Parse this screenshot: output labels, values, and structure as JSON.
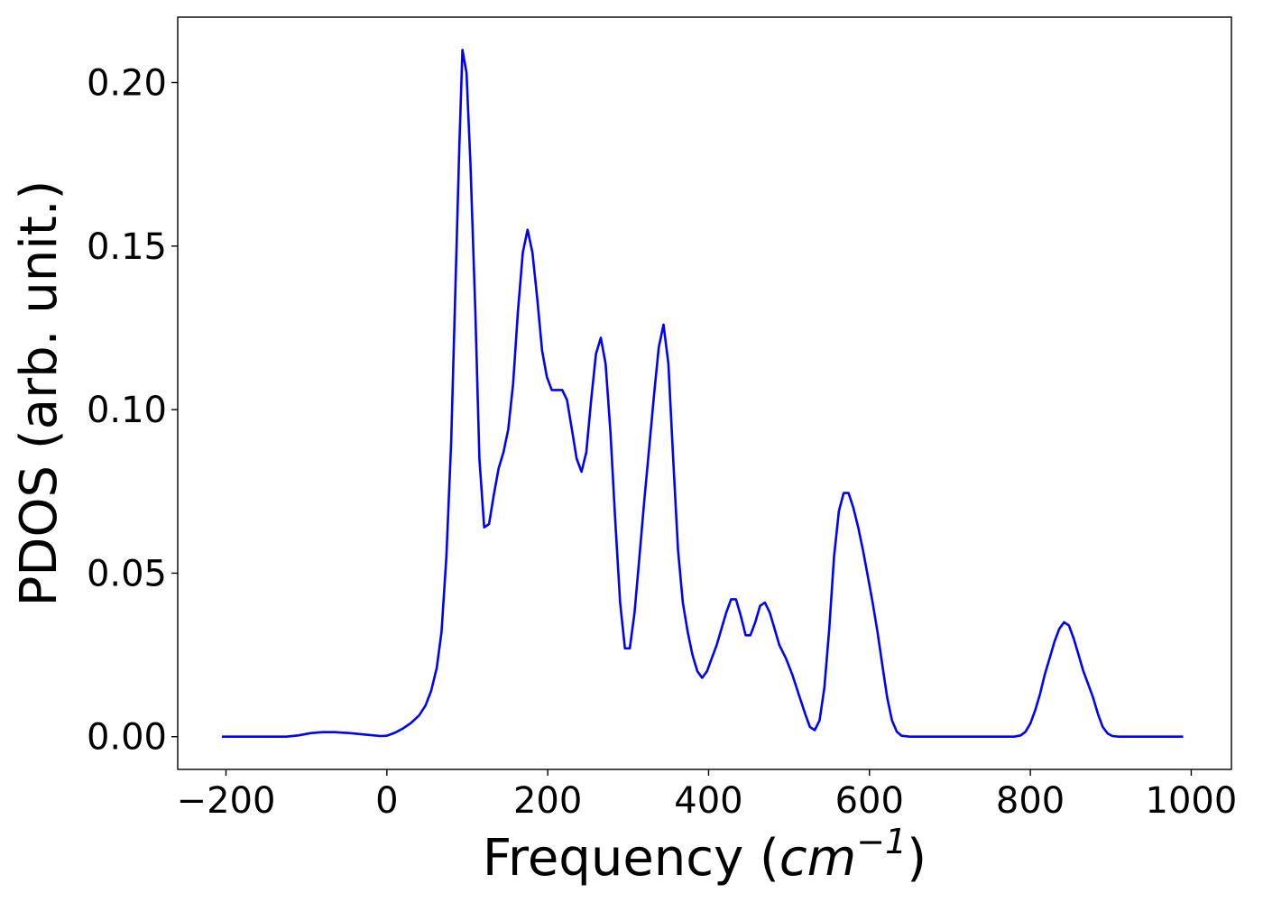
{
  "chart_data": {
    "type": "line",
    "xlabel_prefix": "Frequency (",
    "xlabel_unit": "cm",
    "xlabel_exp": "−1",
    "xlabel_suffix": ")",
    "ylabel": "PDOS (arb. unit.)",
    "xlim": [
      -260,
      1050
    ],
    "ylim": [
      -0.01,
      0.22
    ],
    "x_ticks": [
      {
        "value": -200,
        "label": "−200"
      },
      {
        "value": 0,
        "label": "0"
      },
      {
        "value": 200,
        "label": "200"
      },
      {
        "value": 400,
        "label": "400"
      },
      {
        "value": 600,
        "label": "600"
      },
      {
        "value": 800,
        "label": "800"
      },
      {
        "value": 1000,
        "label": "1000"
      }
    ],
    "y_ticks": [
      {
        "value": 0.0,
        "label": "0.00"
      },
      {
        "value": 0.05,
        "label": "0.05"
      },
      {
        "value": 0.1,
        "label": "0.10"
      },
      {
        "value": 0.15,
        "label": "0.15"
      },
      {
        "value": 0.2,
        "label": "0.20"
      }
    ],
    "grid": false,
    "series": [
      {
        "color": "#0000ff",
        "points": [
          [
            -205,
            0.0
          ],
          [
            -180,
            0.0
          ],
          [
            -150,
            0.0
          ],
          [
            -125,
            0.0
          ],
          [
            -110,
            0.0004
          ],
          [
            -95,
            0.0011
          ],
          [
            -80,
            0.0014
          ],
          [
            -65,
            0.0014
          ],
          [
            -45,
            0.0011
          ],
          [
            -25,
            0.0006
          ],
          [
            -8,
            0.0002
          ],
          [
            0,
            0.0003
          ],
          [
            10,
            0.0012
          ],
          [
            20,
            0.0025
          ],
          [
            30,
            0.0042
          ],
          [
            40,
            0.0065
          ],
          [
            48,
            0.0095
          ],
          [
            55,
            0.014
          ],
          [
            62,
            0.021
          ],
          [
            68,
            0.032
          ],
          [
            74,
            0.055
          ],
          [
            80,
            0.09
          ],
          [
            85,
            0.135
          ],
          [
            90,
            0.18
          ],
          [
            94,
            0.21
          ],
          [
            99,
            0.203
          ],
          [
            104,
            0.175
          ],
          [
            110,
            0.13
          ],
          [
            115,
            0.085
          ],
          [
            121,
            0.064
          ],
          [
            127,
            0.065
          ],
          [
            133,
            0.074
          ],
          [
            139,
            0.082
          ],
          [
            145,
            0.087
          ],
          [
            151,
            0.094
          ],
          [
            157,
            0.108
          ],
          [
            163,
            0.13
          ],
          [
            169,
            0.148
          ],
          [
            175,
            0.155
          ],
          [
            181,
            0.148
          ],
          [
            187,
            0.134
          ],
          [
            193,
            0.118
          ],
          [
            199,
            0.11
          ],
          [
            205,
            0.106
          ],
          [
            212,
            0.106
          ],
          [
            218,
            0.106
          ],
          [
            224,
            0.103
          ],
          [
            230,
            0.094
          ],
          [
            236,
            0.085
          ],
          [
            242,
            0.081
          ],
          [
            248,
            0.087
          ],
          [
            254,
            0.103
          ],
          [
            260,
            0.117
          ],
          [
            266,
            0.122
          ],
          [
            272,
            0.114
          ],
          [
            278,
            0.093
          ],
          [
            284,
            0.066
          ],
          [
            290,
            0.041
          ],
          [
            296,
            0.027
          ],
          [
            302,
            0.027
          ],
          [
            308,
            0.038
          ],
          [
            314,
            0.055
          ],
          [
            320,
            0.072
          ],
          [
            326,
            0.088
          ],
          [
            332,
            0.104
          ],
          [
            338,
            0.119
          ],
          [
            344,
            0.126
          ],
          [
            350,
            0.114
          ],
          [
            356,
            0.085
          ],
          [
            362,
            0.057
          ],
          [
            368,
            0.041
          ],
          [
            374,
            0.032
          ],
          [
            380,
            0.025
          ],
          [
            386,
            0.02
          ],
          [
            392,
            0.018
          ],
          [
            398,
            0.02
          ],
          [
            404,
            0.024
          ],
          [
            410,
            0.028
          ],
          [
            416,
            0.033
          ],
          [
            422,
            0.038
          ],
          [
            428,
            0.042
          ],
          [
            434,
            0.042
          ],
          [
            440,
            0.037
          ],
          [
            446,
            0.031
          ],
          [
            452,
            0.031
          ],
          [
            458,
            0.035
          ],
          [
            464,
            0.04
          ],
          [
            470,
            0.041
          ],
          [
            476,
            0.038
          ],
          [
            482,
            0.033
          ],
          [
            488,
            0.028
          ],
          [
            496,
            0.024
          ],
          [
            504,
            0.019
          ],
          [
            512,
            0.013
          ],
          [
            520,
            0.007
          ],
          [
            526,
            0.003
          ],
          [
            532,
            0.002
          ],
          [
            538,
            0.005
          ],
          [
            544,
            0.015
          ],
          [
            550,
            0.033
          ],
          [
            556,
            0.055
          ],
          [
            562,
            0.069
          ],
          [
            568,
            0.0745
          ],
          [
            574,
            0.0745
          ],
          [
            580,
            0.07
          ],
          [
            586,
            0.064
          ],
          [
            592,
            0.057
          ],
          [
            598,
            0.049
          ],
          [
            604,
            0.041
          ],
          [
            610,
            0.032
          ],
          [
            616,
            0.022
          ],
          [
            622,
            0.012
          ],
          [
            628,
            0.005
          ],
          [
            634,
            0.0015
          ],
          [
            640,
            0.0003
          ],
          [
            650,
            0.0
          ],
          [
            700,
            0.0
          ],
          [
            750,
            0.0
          ],
          [
            780,
            0.0
          ],
          [
            788,
            0.0004
          ],
          [
            794,
            0.0015
          ],
          [
            800,
            0.004
          ],
          [
            806,
            0.008
          ],
          [
            812,
            0.013
          ],
          [
            818,
            0.019
          ],
          [
            824,
            0.024
          ],
          [
            830,
            0.029
          ],
          [
            836,
            0.033
          ],
          [
            842,
            0.035
          ],
          [
            848,
            0.034
          ],
          [
            854,
            0.03
          ],
          [
            860,
            0.025
          ],
          [
            866,
            0.02
          ],
          [
            872,
            0.016
          ],
          [
            878,
            0.012
          ],
          [
            884,
            0.007
          ],
          [
            890,
            0.003
          ],
          [
            896,
            0.001
          ],
          [
            902,
            0.0002
          ],
          [
            910,
            0.0
          ],
          [
            950,
            0.0
          ],
          [
            990,
            0.0
          ]
        ]
      }
    ]
  }
}
